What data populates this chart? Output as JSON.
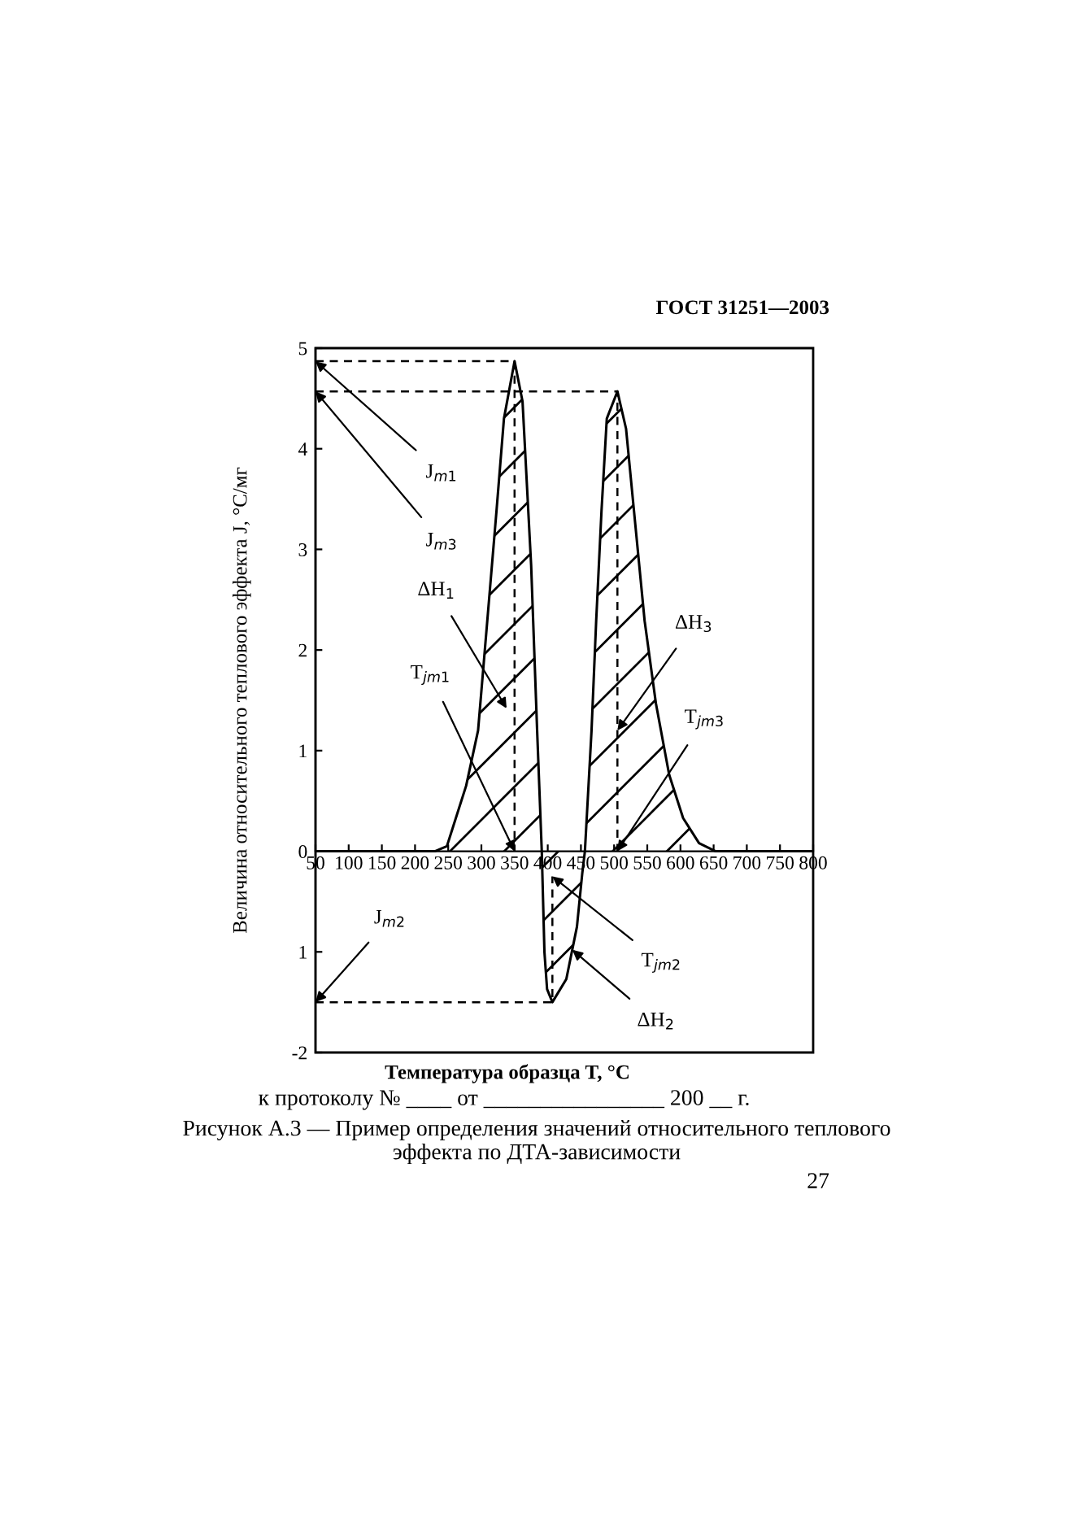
{
  "chart_data": {
    "type": "line",
    "xlabel": "Температура образца T, °C",
    "ylabel": "Величина относительного теплового эффекта J, °C/мг",
    "xlim": [
      50,
      800
    ],
    "xticks": [
      50,
      100,
      150,
      200,
      250,
      300,
      350,
      400,
      450,
      500,
      550,
      600,
      650,
      700,
      750,
      800
    ],
    "ylim": [
      -2,
      5
    ],
    "yticks": [
      -2,
      {
        "value": -1,
        "label": "1"
      },
      0,
      1,
      2,
      3,
      4,
      5
    ],
    "grid": false,
    "legend": false,
    "marker": "none",
    "series": [
      {
        "type": "area",
        "color": "#000000",
        "line_style": "solid",
        "x": [
          50,
          230,
          248,
          277,
          295,
          309,
          323,
          334,
          350,
          362,
          375,
          384,
          391,
          395,
          399,
          407,
          428,
          444,
          452,
          456,
          466,
          473,
          481,
          489,
          505,
          518,
          530,
          546,
          563,
          583,
          604,
          628,
          653,
          800
        ],
        "values": [
          0,
          0,
          0.05,
          0.65,
          1.2,
          2.3,
          3.4,
          4.3,
          4.87,
          4.47,
          2.84,
          1.2,
          0,
          -1.0,
          -1.37,
          -1.5,
          -1.27,
          -0.75,
          -0.22,
          0,
          1.2,
          2.29,
          3.38,
          4.3,
          4.57,
          4.2,
          3.38,
          2.29,
          1.47,
          0.76,
          0.33,
          0.08,
          0,
          0
        ]
      },
      {
        "color": "#000000",
        "line_style": "dashed",
        "x": [
          50,
          350,
          350
        ],
        "values": [
          4.87,
          4.87,
          0
        ]
      },
      {
        "color": "#000000",
        "line_style": "dashed",
        "x": [
          50,
          505,
          505
        ],
        "values": [
          4.57,
          4.57,
          0
        ]
      },
      {
        "color": "#000000",
        "line_style": "dashed",
        "x": [
          50,
          407,
          407
        ],
        "values": [
          -1.5,
          -1.5,
          -0.25
        ]
      }
    ],
    "annotations": [
      {
        "text": "J$_{m1}$",
        "x": 50,
        "y": 4.87
      },
      {
        "text": "J$_{m3}$",
        "x": 50,
        "y": 4.57
      },
      {
        "text": "ΔH$_{1}$",
        "x": 338,
        "y": 1.42
      },
      {
        "text": "T$_{jm1}$",
        "x": 350,
        "y": 0
      },
      {
        "text": "ΔH$_{3}$",
        "x": 505,
        "y": 1.2
      },
      {
        "text": "T$_{jm3}$",
        "x": 505,
        "y": 0
      },
      {
        "text": "J$_{m2}$",
        "x": 50,
        "y": -1.5
      },
      {
        "text": "T$_{jm2}$",
        "x": 407,
        "y": -0.25
      },
      {
        "text": "ΔH$_{2}$",
        "x": 437,
        "y": -0.98
      },
      "ГОСТ 31251—2003",
      "к протоколу № ____ от ________________ 200 __ г.",
      "Рисунок А.3 — Пример определения значений относительного теплового эффекта по ДТА-зависимости",
      "27"
    ]
  }
}
